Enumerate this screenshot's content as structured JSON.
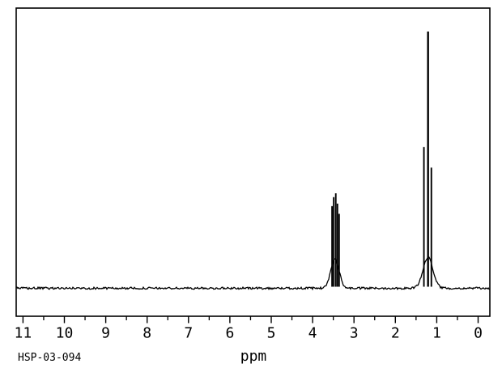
{
  "chart_data": {
    "type": "line",
    "description": "1H NMR spectrum trace, black on white, intensity vs chemical shift",
    "xlabel": "ppm",
    "sample_id": "HSP-03-094",
    "colors": {
      "trace": "#000000",
      "background": "#ffffff",
      "axis": "#000000"
    },
    "x_axis": {
      "unit": "ppm",
      "direction": "right-to-left",
      "major_ticks": [
        11,
        10,
        9,
        8,
        7,
        6,
        5,
        4,
        3,
        2,
        1,
        0
      ],
      "minor_tick_interval": 0.5,
      "visible_range": [
        11.17,
        -0.28
      ]
    },
    "y_axis": {
      "visible": false,
      "range": [
        0,
        1.1
      ]
    },
    "baseline_intensity": 0.0,
    "noise_amplitude": 0.004,
    "peaks": [
      {
        "name": "multiplet-3.45ppm",
        "center_ppm": 3.45,
        "envelope": {
          "center_ppm": 3.46,
          "sigma_ppm": 0.1,
          "intensity": 0.115
        },
        "lines": [
          {
            "ppm": 3.53,
            "intensity": 0.32
          },
          {
            "ppm": 3.49,
            "intensity": 0.355
          },
          {
            "ppm": 3.44,
            "intensity": 0.37
          },
          {
            "ppm": 3.4,
            "intensity": 0.33
          },
          {
            "ppm": 3.36,
            "intensity": 0.29
          }
        ]
      },
      {
        "name": "triplet-1.21ppm",
        "center_ppm": 1.21,
        "envelope": {
          "center_ppm": 1.21,
          "sigma_ppm": 0.12,
          "intensity": 0.12
        },
        "lines": [
          {
            "ppm": 1.31,
            "intensity": 0.55
          },
          {
            "ppm": 1.21,
            "intensity": 1.0
          },
          {
            "ppm": 1.13,
            "intensity": 0.47
          }
        ]
      }
    ]
  }
}
